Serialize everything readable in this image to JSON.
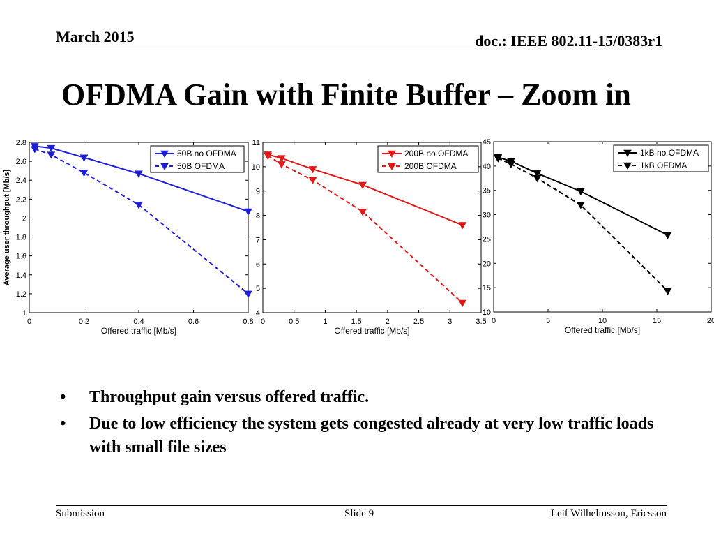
{
  "header": {
    "date": "March 2015",
    "doc": "doc.: IEEE 802.11-15/0383r1"
  },
  "title": "OFDMA Gain with Finite Buffer – Zoom in",
  "chart_data": [
    {
      "type": "line",
      "xlabel": "Offered traffic [Mb/s]",
      "ylabel": "Average user throughput [Mb/s]",
      "xlim": [
        0,
        0.8
      ],
      "ylim": [
        1,
        2.8
      ],
      "xticks": [
        0,
        0.2,
        0.4,
        0.6,
        0.8
      ],
      "yticks": [
        1,
        1.2,
        1.4,
        1.6,
        1.8,
        2,
        2.2,
        2.4,
        2.6,
        2.8
      ],
      "grid": false,
      "legend": "top-right",
      "color": "#1f1fd6",
      "series": [
        {
          "name": "50B no OFDMA",
          "dash": false,
          "x": [
            0.02,
            0.08,
            0.2,
            0.4,
            0.8
          ],
          "y": [
            2.76,
            2.74,
            2.64,
            2.47,
            2.07
          ]
        },
        {
          "name": "50B OFDMA",
          "dash": true,
          "x": [
            0.02,
            0.08,
            0.2,
            0.4,
            0.8
          ],
          "y": [
            2.73,
            2.67,
            2.48,
            2.14,
            1.2
          ]
        }
      ]
    },
    {
      "type": "line",
      "xlabel": "Offered traffic [Mb/s]",
      "ylabel": "",
      "xlim": [
        0,
        3.5
      ],
      "ylim": [
        4,
        11
      ],
      "xticks": [
        0,
        0.5,
        1,
        1.5,
        2,
        2.5,
        3,
        3.5
      ],
      "yticks": [
        4,
        5,
        6,
        7,
        8,
        9,
        10,
        11
      ],
      "grid": false,
      "legend": "top-right",
      "color": "#e01818",
      "series": [
        {
          "name": "200B no OFDMA",
          "dash": false,
          "x": [
            0.08,
            0.3,
            0.8,
            1.6,
            3.2
          ],
          "y": [
            10.5,
            10.35,
            9.9,
            9.25,
            7.6
          ]
        },
        {
          "name": "200B OFDMA",
          "dash": true,
          "x": [
            0.08,
            0.3,
            0.8,
            1.6,
            3.2
          ],
          "y": [
            10.45,
            10.1,
            9.45,
            8.15,
            4.4
          ]
        }
      ]
    },
    {
      "type": "line",
      "xlabel": "Offered traffic [Mb/s]",
      "ylabel": "",
      "xlim": [
        0,
        20
      ],
      "ylim": [
        10,
        45
      ],
      "xticks": [
        0,
        5,
        10,
        15,
        20
      ],
      "yticks": [
        10,
        15,
        20,
        25,
        30,
        35,
        40,
        45
      ],
      "grid": false,
      "legend": "top-right",
      "color": "#000000",
      "series": [
        {
          "name": "1kB no OFDMA",
          "dash": false,
          "x": [
            0.4,
            1.6,
            4,
            8,
            16
          ],
          "y": [
            41.8,
            41,
            38.5,
            34.8,
            25.8
          ]
        },
        {
          "name": "1kB OFDMA",
          "dash": true,
          "x": [
            0.4,
            1.6,
            4,
            8,
            16
          ],
          "y": [
            41.6,
            40.4,
            37.5,
            32,
            14.3
          ]
        }
      ]
    }
  ],
  "bullets": [
    "Throughput gain versus offered traffic.",
    "Due to low efficiency the system gets congested already at very low traffic loads with small file sizes"
  ],
  "footer": {
    "left": "Submission",
    "center": "Slide 9",
    "right": "Leif Wilhelmsson, Ericsson"
  }
}
